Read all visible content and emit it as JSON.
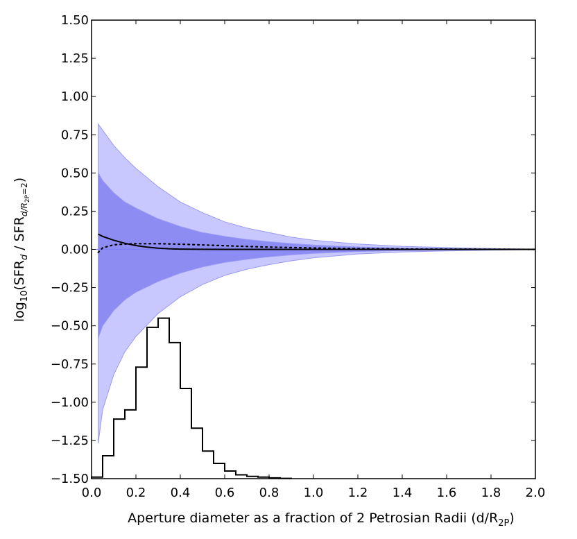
{
  "chart_data": {
    "type": "area",
    "xlabel": "Aperture diameter as a fraction of 2 Petrosian Radii (d/R",
    "xlabel_sub": "2P",
    "xlabel_close": ")",
    "ylabel_parts": [
      "log",
      "10",
      "(SFR",
      "d",
      " / SFR",
      "d/R",
      "2P",
      "=2",
      ")"
    ],
    "xlim": [
      0.0,
      2.0
    ],
    "ylim": [
      -1.5,
      1.5
    ],
    "x_ticks": [
      0.0,
      0.2,
      0.4,
      0.6,
      0.8,
      1.0,
      1.2,
      1.4,
      1.6,
      1.8,
      2.0
    ],
    "x_tick_labels": [
      "0.0",
      "0.2",
      "0.4",
      "0.6",
      "0.8",
      "1.0",
      "1.2",
      "1.4",
      "1.6",
      "1.8",
      "2.0"
    ],
    "y_ticks": [
      1.5,
      1.25,
      1.0,
      0.75,
      0.5,
      0.25,
      0.0,
      -0.25,
      -0.5,
      -0.75,
      -1.0,
      -1.25,
      -1.5
    ],
    "y_tick_labels": [
      "1.50",
      "1.25",
      "1.00",
      "0.75",
      "0.50",
      "0.25",
      "0.00",
      "−0.25",
      "−0.50",
      "−0.75",
      "−1.00",
      "−1.25",
      "−1.50"
    ],
    "grid": false,
    "colors": {
      "outer_band": "#c8c8ff",
      "inner_band": "#8c8cf2",
      "band_edge": "#9a9af5",
      "line": "#000000",
      "zero_line": "#7f7fff"
    },
    "zero_line": 0.0,
    "outer_band": {
      "x": [
        0.03,
        0.05,
        0.1,
        0.15,
        0.2,
        0.3,
        0.4,
        0.5,
        0.6,
        0.7,
        0.8,
        0.9,
        1.0,
        1.2,
        1.4,
        1.6,
        1.8,
        2.0
      ],
      "upper": [
        0.82,
        0.78,
        0.68,
        0.6,
        0.53,
        0.41,
        0.31,
        0.24,
        0.18,
        0.14,
        0.11,
        0.08,
        0.06,
        0.035,
        0.02,
        0.012,
        0.006,
        0.002
      ],
      "lower": [
        -1.27,
        -1.05,
        -0.82,
        -0.67,
        -0.57,
        -0.42,
        -0.31,
        -0.23,
        -0.17,
        -0.13,
        -0.1,
        -0.075,
        -0.055,
        -0.03,
        -0.017,
        -0.01,
        -0.005,
        -0.002
      ]
    },
    "inner_band": {
      "x": [
        0.03,
        0.05,
        0.1,
        0.15,
        0.2,
        0.3,
        0.4,
        0.5,
        0.6,
        0.7,
        0.8,
        0.9,
        1.0,
        1.2,
        1.4,
        1.6,
        1.8,
        2.0
      ],
      "upper": [
        0.5,
        0.45,
        0.37,
        0.31,
        0.27,
        0.2,
        0.15,
        0.11,
        0.085,
        0.065,
        0.05,
        0.038,
        0.028,
        0.016,
        0.009,
        0.005,
        0.003,
        0.001
      ],
      "lower": [
        -0.58,
        -0.5,
        -0.4,
        -0.33,
        -0.28,
        -0.21,
        -0.155,
        -0.115,
        -0.085,
        -0.065,
        -0.048,
        -0.036,
        -0.026,
        -0.014,
        -0.008,
        -0.004,
        -0.002,
        -0.001
      ]
    },
    "solid_line": {
      "x": [
        0.03,
        0.05,
        0.1,
        0.15,
        0.2,
        0.25,
        0.3,
        0.35,
        0.4,
        0.5,
        0.6,
        0.8,
        1.0,
        1.5,
        2.0
      ],
      "y": [
        0.1,
        0.085,
        0.06,
        0.04,
        0.025,
        0.015,
        0.008,
        0.004,
        0.002,
        0.0005,
        0.0,
        0.0,
        0.0,
        0.0,
        0.0
      ]
    },
    "dotted_line": {
      "x": [
        0.03,
        0.05,
        0.1,
        0.15,
        0.2,
        0.3,
        0.4,
        0.5,
        0.6,
        0.7,
        0.8,
        1.0,
        1.2,
        1.5,
        2.0
      ],
      "y": [
        -0.02,
        0.01,
        0.03,
        0.035,
        0.037,
        0.037,
        0.034,
        0.029,
        0.024,
        0.019,
        0.015,
        0.009,
        0.005,
        0.002,
        0.0
      ]
    },
    "histogram": {
      "bin_edges": [
        0.0,
        0.05,
        0.1,
        0.15,
        0.2,
        0.25,
        0.3,
        0.35,
        0.4,
        0.45,
        0.5,
        0.55,
        0.6,
        0.65,
        0.7,
        0.75,
        0.8,
        0.85,
        0.9
      ],
      "heights": [
        -1.49,
        -1.35,
        -1.11,
        -1.05,
        -0.77,
        -0.51,
        -0.45,
        -0.61,
        -0.91,
        -1.17,
        -1.32,
        -1.4,
        -1.45,
        -1.475,
        -1.485,
        -1.49,
        -1.495,
        -1.498
      ]
    }
  }
}
